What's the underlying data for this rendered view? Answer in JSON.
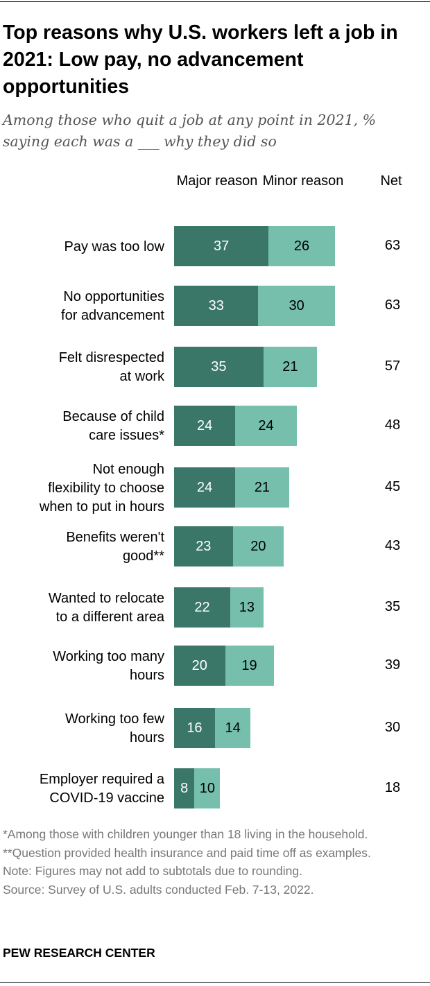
{
  "chart_data": {
    "type": "bar",
    "orientation": "horizontal",
    "stacked": true,
    "title": "Top reasons why U.S. workers left a job in 2021: Low pay, no advancement opportunities",
    "subtitle": "Among those who quit a job at any point in 2021, % saying each was a ___ why they did so",
    "column_headers": {
      "major": "Major reason",
      "minor": "Minor reason",
      "net": "Net"
    },
    "categories": [
      "Pay was too low",
      "No opportunities for advancement",
      "Felt disrespected at work",
      "Because of child care issues*",
      "Not enough flexibility to choose when to put in hours",
      "Benefits weren't good**",
      "Wanted to relocate to a different area",
      "Working too many hours",
      "Working too few hours",
      "Employer required a COVID-19 vaccine"
    ],
    "category_lines": [
      [
        "Pay was too low"
      ],
      [
        "No opportunities",
        "for advancement"
      ],
      [
        "Felt disrespected",
        "at work"
      ],
      [
        "Because of child",
        "care issues*"
      ],
      [
        "Not enough",
        "flexibility to choose",
        "when to put in hours"
      ],
      [
        "Benefits weren't",
        "good**"
      ],
      [
        "Wanted to relocate",
        "to a different area"
      ],
      [
        "Working too many",
        "hours"
      ],
      [
        "Working too few",
        "hours"
      ],
      [
        "Employer required a",
        "COVID-19 vaccine"
      ]
    ],
    "series": [
      {
        "name": "Major reason",
        "color": "#3a7768",
        "values": [
          37,
          33,
          35,
          24,
          24,
          23,
          22,
          20,
          16,
          8
        ]
      },
      {
        "name": "Minor reason",
        "color": "#76bfad",
        "values": [
          26,
          30,
          21,
          24,
          21,
          20,
          13,
          19,
          14,
          10
        ]
      }
    ],
    "net": [
      63,
      63,
      57,
      48,
      45,
      43,
      35,
      39,
      30,
      18
    ],
    "xlim": [
      0,
      100
    ],
    "grid": false,
    "legend": "top"
  },
  "notes": [
    "*Among those with children younger than 18 living in the household.",
    "**Question provided health insurance and paid time off as examples.",
    "Note: Figures may not add to subtotals due to rounding.",
    "Source: Survey of U.S. adults conducted Feb. 7-13, 2022."
  ],
  "brand": "PEW RESEARCH CENTER"
}
